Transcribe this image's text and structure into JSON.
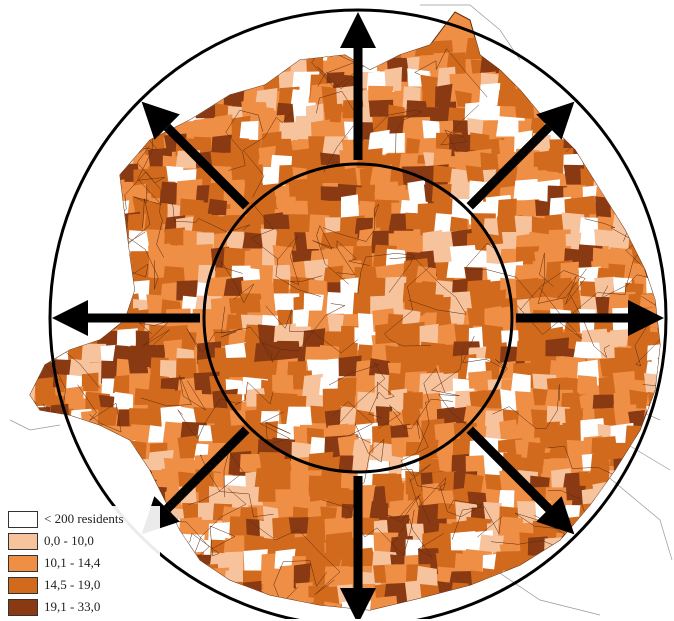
{
  "colors": {
    "background": "#ffffff",
    "class_empty": "#ffffff",
    "class_1": "#f7c39c",
    "class_2": "#ef8e45",
    "class_3": "#d16a1d",
    "class_4": "#8a3a12",
    "boundary": "#5a2a10",
    "ring": "#000000",
    "arrow": "#000000"
  },
  "legend": {
    "items": [
      {
        "label": "< 200 residents",
        "color": "#ffffff"
      },
      {
        "label": "0,0 - 10,0",
        "color": "#f7c39c"
      },
      {
        "label": "10,1 - 14,4",
        "color": "#ef8e45"
      },
      {
        "label": "14,5 - 19,0",
        "color": "#d16a1d"
      },
      {
        "label": "19,1 - 33,0",
        "color": "#8a3a12"
      }
    ]
  },
  "map": {
    "rings": [
      "inner-ring",
      "outer-ring"
    ],
    "arrow_directions": [
      "north",
      "north-east",
      "east",
      "south-east",
      "south",
      "south-west",
      "west",
      "north-west"
    ]
  }
}
